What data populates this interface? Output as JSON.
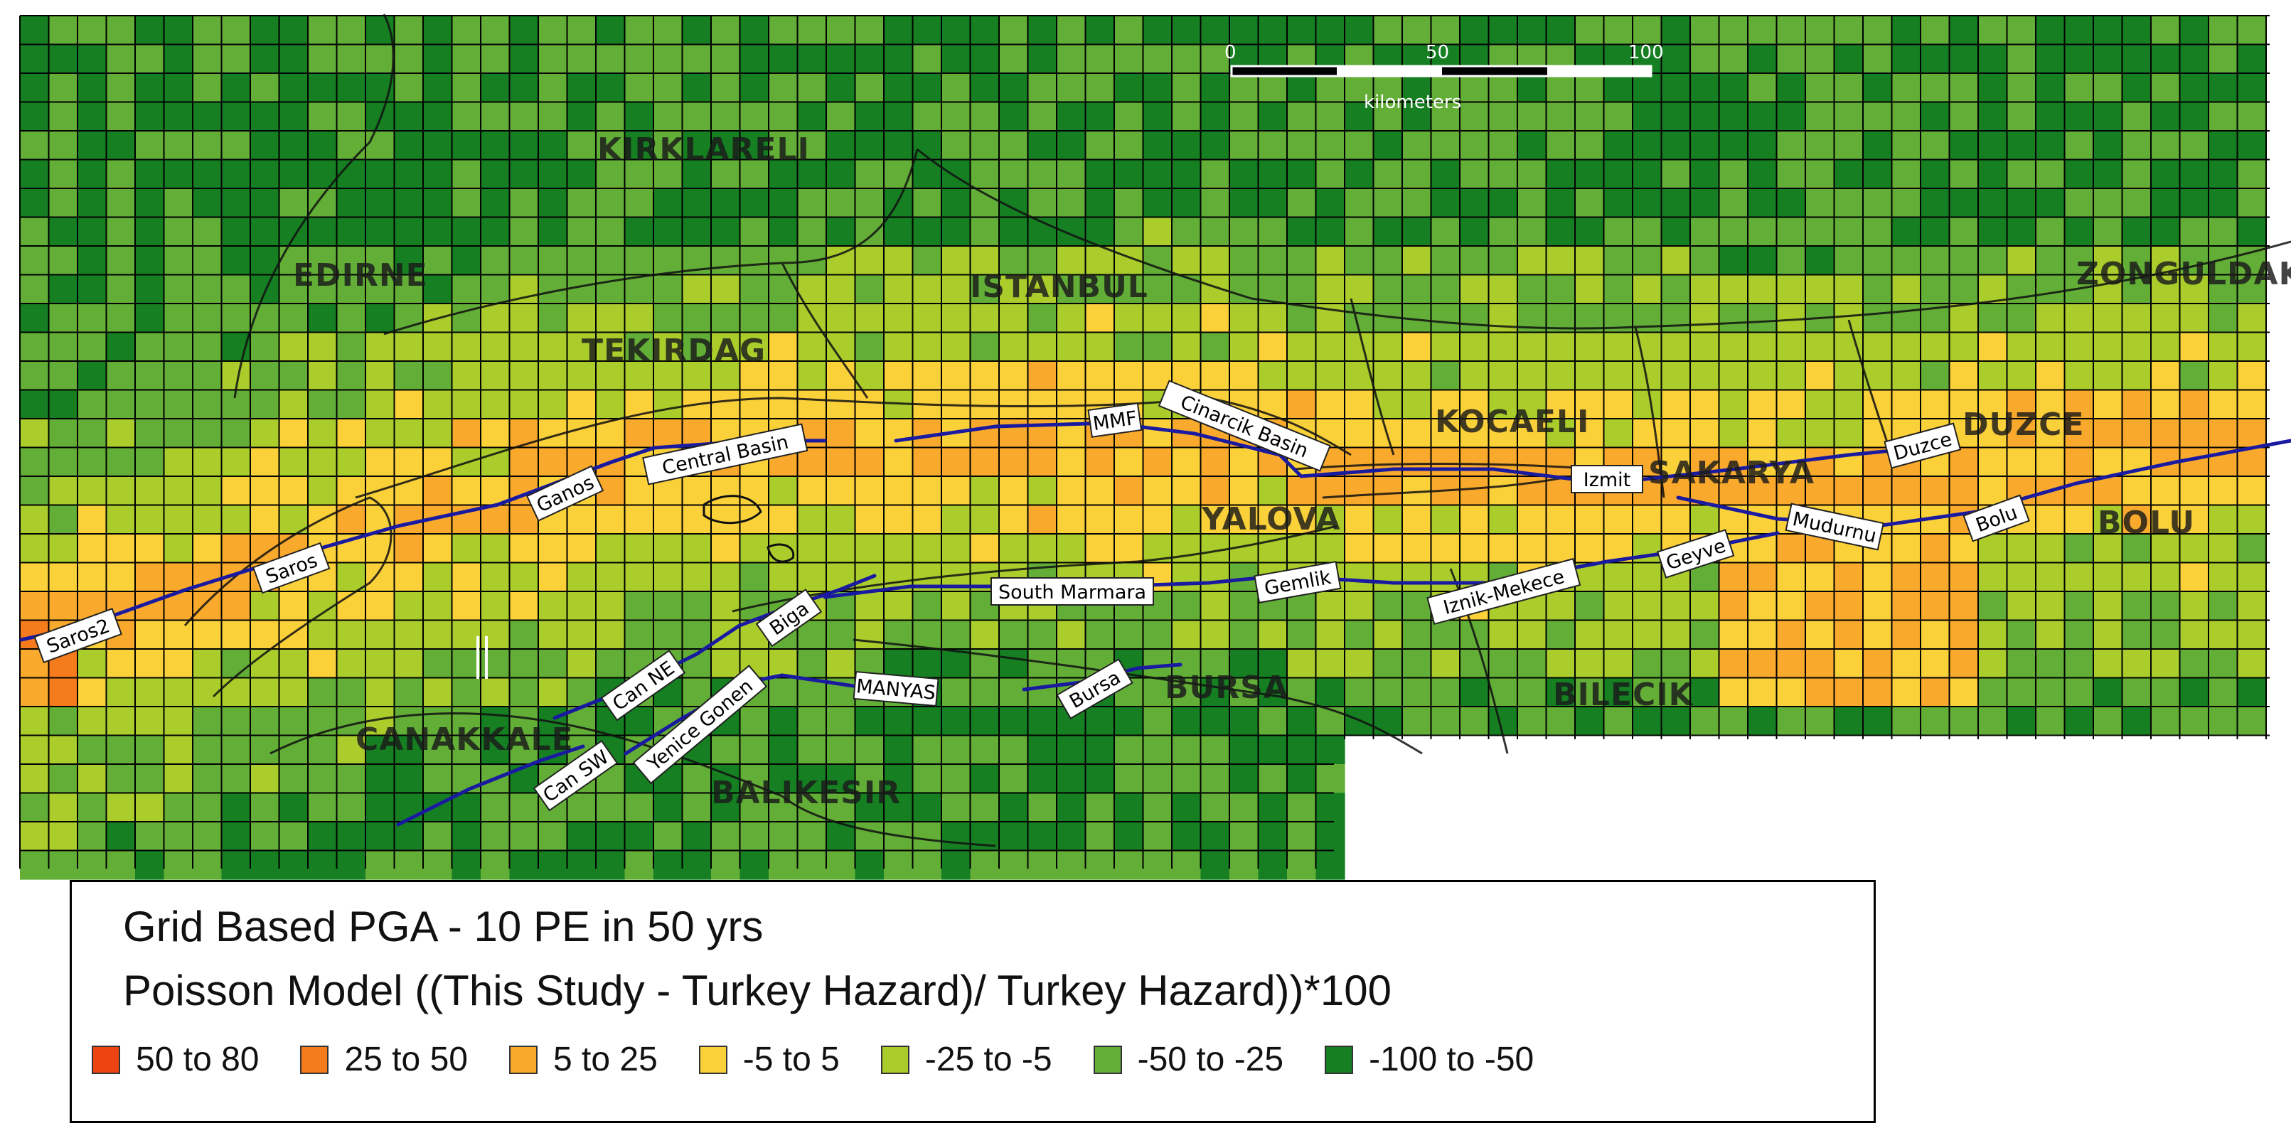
{
  "scale_bar": {
    "ticks": [
      "0",
      "50",
      "100"
    ],
    "unit": "kilometers"
  },
  "provinces": [
    {
      "id": "kirklareli",
      "name": "KIRKLARELI"
    },
    {
      "id": "edirne",
      "name": "EDIRNE"
    },
    {
      "id": "istanbul",
      "name": "ISTANBUL"
    },
    {
      "id": "tekirdag",
      "name": "TEKIRDAG"
    },
    {
      "id": "kocaeli",
      "name": "KOCAELI"
    },
    {
      "id": "sakarya",
      "name": "SAKARYA"
    },
    {
      "id": "duzce",
      "name": "DUZCE"
    },
    {
      "id": "zonguldak",
      "name": "ZONGULDAK"
    },
    {
      "id": "yalova",
      "name": "YALOVA"
    },
    {
      "id": "bolu",
      "name": "BOLU"
    },
    {
      "id": "bursa",
      "name": "BURSA"
    },
    {
      "id": "bilecik",
      "name": "BILECIK"
    },
    {
      "id": "canakkale",
      "name": "CANAKKALE"
    },
    {
      "id": "balikesir",
      "name": "BALIKESIR"
    }
  ],
  "faults": [
    {
      "id": "saros2",
      "name": "Saros2"
    },
    {
      "id": "saros",
      "name": "Saros"
    },
    {
      "id": "ganos",
      "name": "Ganos"
    },
    {
      "id": "central-basin",
      "name": "Central Basin"
    },
    {
      "id": "mmf",
      "name": "MMF"
    },
    {
      "id": "cinarcik-basin",
      "name": "Cinarcik Basin"
    },
    {
      "id": "izmit",
      "name": "Izmit"
    },
    {
      "id": "duzce",
      "name": "Duzce"
    },
    {
      "id": "mudurnu",
      "name": "Mudurnu"
    },
    {
      "id": "bolu",
      "name": "Bolu"
    },
    {
      "id": "geyve",
      "name": "Geyve"
    },
    {
      "id": "iznik-mekece",
      "name": "Iznik-Mekece"
    },
    {
      "id": "gemlik",
      "name": "Gemlik"
    },
    {
      "id": "south-marmara",
      "name": "South Marmara"
    },
    {
      "id": "biga",
      "name": "Biga"
    },
    {
      "id": "can-ne",
      "name": "Can NE"
    },
    {
      "id": "can-sw",
      "name": "Can SW"
    },
    {
      "id": "yenice-gonen",
      "name": "Yenice Gonen"
    },
    {
      "id": "manyas",
      "name": "MANYAS"
    },
    {
      "id": "bursa",
      "name": "Bursa"
    }
  ],
  "legend": {
    "title_line1": "Grid Based PGA - 10 PE in 50 yrs",
    "title_line2": "Poisson Model ((This Study - Turkey Hazard)/ Turkey Hazard))*100",
    "classes": [
      {
        "label": "50 to 80",
        "color": "#ee4414"
      },
      {
        "label": "25 to 50",
        "color": "#f57b1c"
      },
      {
        "label": "5 to 25",
        "color": "#f9a92c"
      },
      {
        "label": "-5 to 5",
        "color": "#fbd13a"
      },
      {
        "label": "-25 to -5",
        "color": "#aacd2c"
      },
      {
        "label": "-50 to -25",
        "color": "#62ae36"
      },
      {
        "label": "-100 to -50",
        "color": "#157f22"
      }
    ]
  },
  "grid_line_color": "#000000",
  "fault_line_color": "#1a1aa0"
}
